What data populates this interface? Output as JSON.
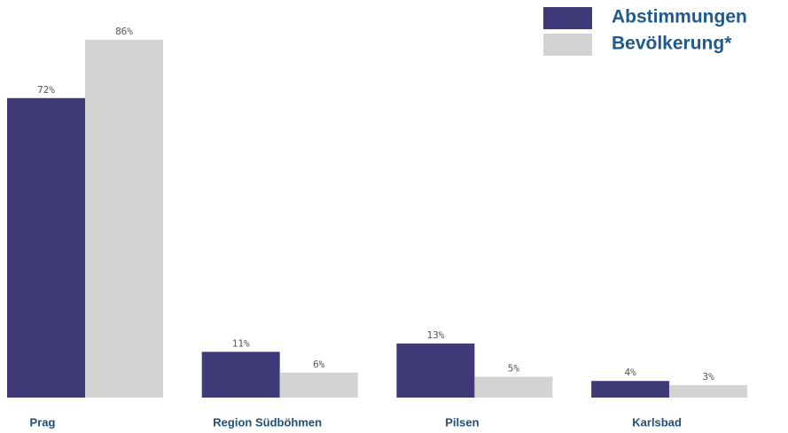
{
  "chart_data": {
    "type": "bar",
    "categories": [
      "Prag",
      "Region Südböhmen",
      "Pilsen",
      "Karlsbad"
    ],
    "series": [
      {
        "name": "Abstimmungen",
        "color": "#3f3a77",
        "values": [
          72,
          11,
          13,
          4
        ],
        "value_labels": [
          "72%",
          "11%",
          "13%",
          "4%"
        ]
      },
      {
        "name": "Bevölkerung*",
        "color": "#d3d3d3",
        "values": [
          86,
          6,
          5,
          3
        ],
        "value_labels": [
          "86%",
          "6%",
          "5%",
          "3%"
        ]
      }
    ],
    "legend": "top-right"
  }
}
